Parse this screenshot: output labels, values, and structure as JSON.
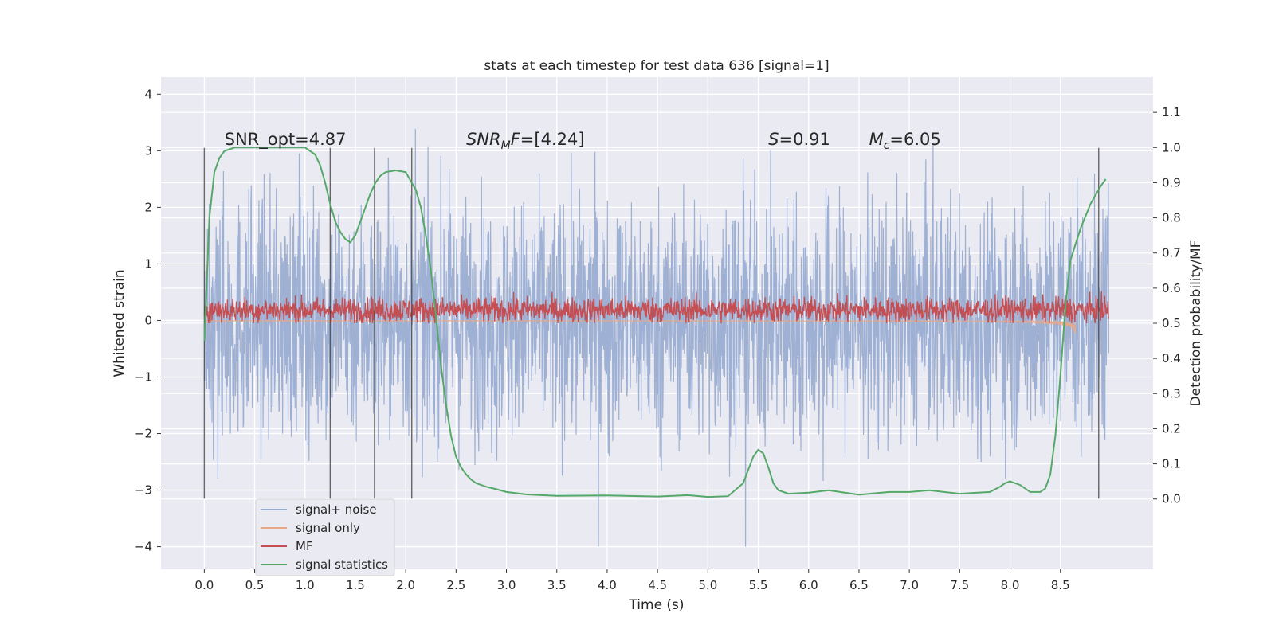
{
  "chart_data": {
    "type": "line",
    "title": "stats at each timestep for test data 636 [signal=1]",
    "xlabel": "Time (s)",
    "ylabel_left": "Whitened strain",
    "ylabel_right": "Detection probability/MF",
    "xlim": [
      -0.43,
      9.42
    ],
    "ylim_left": [
      -4.4,
      4.3
    ],
    "ylim_right": [
      -0.2,
      1.2
    ],
    "x_ticks": [
      "0.0",
      "0.5",
      "1.0",
      "1.5",
      "2.0",
      "2.5",
      "3.0",
      "3.5",
      "4.0",
      "4.5",
      "5.0",
      "5.5",
      "6.0",
      "6.5",
      "7.0",
      "7.5",
      "8.0",
      "8.5"
    ],
    "y_ticks_left": [
      "4",
      "3",
      "2",
      "1",
      "0",
      "−1",
      "−2",
      "−3",
      "−4"
    ],
    "y_ticks_right": [
      "1.1",
      "1.0",
      "0.9",
      "0.8",
      "0.7",
      "0.6",
      "0.5",
      "0.4",
      "0.3",
      "0.2",
      "0.1",
      "0.0"
    ],
    "grid": true,
    "legend_location": "lower-left",
    "annotations": [
      {
        "pre": "SNR_opt=4.87",
        "it": "",
        "sub": "",
        "post": ""
      },
      {
        "pre": "",
        "it": "SNR",
        "sub": "M",
        "post": "F=[4.24]",
        "it2": "F"
      },
      {
        "pre": "",
        "it": "S",
        "sub": "",
        "post": "=0.91"
      },
      {
        "pre": "",
        "it": "M",
        "sub": "c",
        "post": "=6.05"
      }
    ],
    "vertical_markers_x": [
      0.0,
      1.25,
      1.69,
      2.06,
      8.88
    ],
    "series": [
      {
        "name": "signal+ noise",
        "color": "#9aadd1",
        "axis": "left",
        "x_range": [
          0.0,
          8.98
        ],
        "y_range": [
          -4.0,
          3.9
        ]
      },
      {
        "name": "signal only",
        "color": "#e8a787",
        "axis": "left",
        "x_range": [
          0.0,
          8.65
        ],
        "y_range": [
          -0.63,
          0.1
        ]
      },
      {
        "name": "MF",
        "color": "#c44e52",
        "axis": "right",
        "x_range": [
          0.0,
          8.98
        ],
        "y_range": [
          0.5,
          0.63
        ]
      },
      {
        "name": "signal statistics",
        "color": "#55a868",
        "axis": "right",
        "x": [
          0.0,
          0.05,
          0.1,
          0.15,
          0.2,
          0.3,
          0.4,
          0.6,
          0.8,
          1.0,
          1.05,
          1.1,
          1.15,
          1.2,
          1.25,
          1.3,
          1.35,
          1.4,
          1.45,
          1.5,
          1.55,
          1.6,
          1.65,
          1.7,
          1.75,
          1.8,
          1.9,
          2.0,
          2.1,
          2.15,
          2.2,
          2.25,
          2.3,
          2.35,
          2.4,
          2.45,
          2.5,
          2.55,
          2.6,
          2.65,
          2.7,
          2.8,
          2.9,
          3.0,
          3.2,
          3.5,
          4.0,
          4.5,
          4.8,
          5.0,
          5.2,
          5.35,
          5.45,
          5.5,
          5.55,
          5.6,
          5.65,
          5.7,
          5.8,
          6.0,
          6.2,
          6.5,
          6.8,
          7.0,
          7.2,
          7.5,
          7.8,
          7.9,
          7.95,
          8.0,
          8.1,
          8.2,
          8.3,
          8.35,
          8.4,
          8.45,
          8.5,
          8.55,
          8.6,
          8.7,
          8.8,
          8.9,
          8.95
        ],
        "y": [
          0.45,
          0.8,
          0.93,
          0.97,
          0.99,
          1.0,
          1.0,
          1.0,
          1.0,
          1.0,
          0.99,
          0.98,
          0.95,
          0.9,
          0.84,
          0.79,
          0.76,
          0.74,
          0.73,
          0.75,
          0.79,
          0.83,
          0.87,
          0.9,
          0.92,
          0.93,
          0.935,
          0.93,
          0.88,
          0.83,
          0.75,
          0.65,
          0.52,
          0.38,
          0.27,
          0.18,
          0.12,
          0.09,
          0.07,
          0.055,
          0.045,
          0.035,
          0.028,
          0.02,
          0.013,
          0.009,
          0.01,
          0.007,
          0.011,
          0.006,
          0.008,
          0.045,
          0.12,
          0.14,
          0.13,
          0.09,
          0.045,
          0.025,
          0.015,
          0.018,
          0.025,
          0.012,
          0.02,
          0.02,
          0.025,
          0.015,
          0.02,
          0.035,
          0.045,
          0.05,
          0.04,
          0.02,
          0.02,
          0.03,
          0.07,
          0.18,
          0.35,
          0.55,
          0.68,
          0.77,
          0.84,
          0.89,
          0.91
        ]
      }
    ]
  }
}
